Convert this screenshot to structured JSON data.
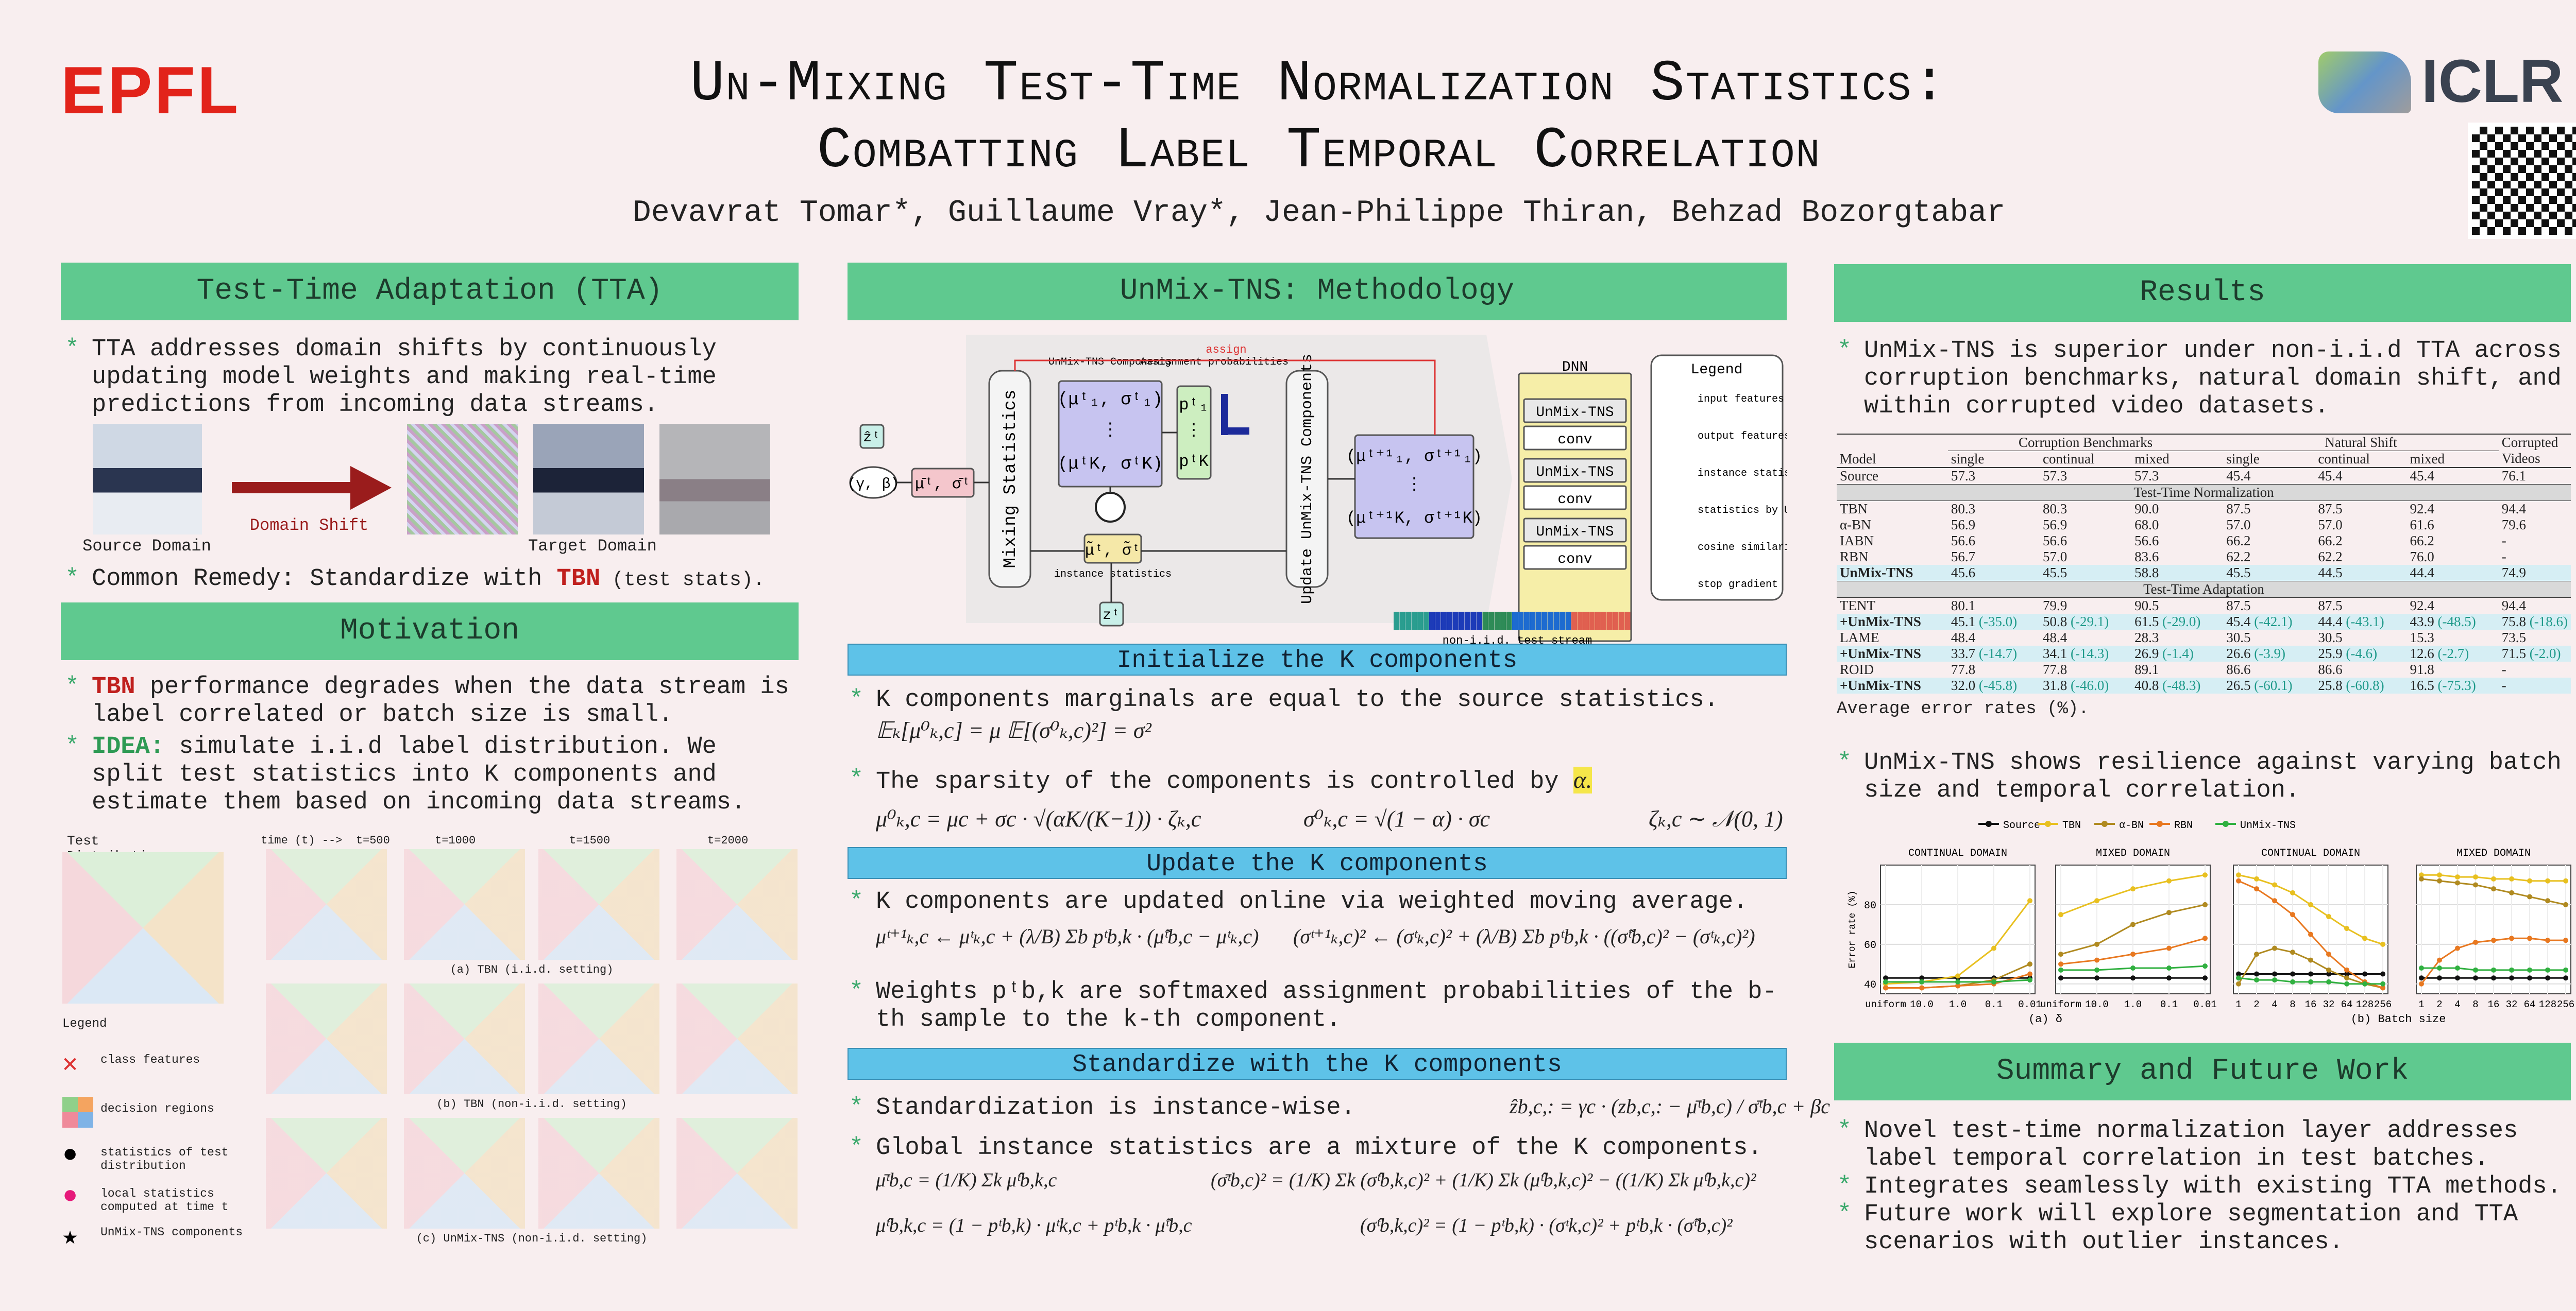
{
  "header": {
    "logo_left": "EPFL",
    "title_lines": [
      "Un-Mixing Test-Time Normalization Statistics:",
      "Combatting Label Temporal Correlation"
    ],
    "authors": "Devavrat Tomar*, Guillaume Vray*, Jean-Philippe Thiran, Behzad Bozorgtabar",
    "logo_right": "ICLR"
  },
  "tta": {
    "heading": "Test-Time Adaptation (TTA)",
    "bullet": "TTA addresses domain shifts by continuously updating model weights and making real-time predictions from incoming data streams.",
    "source_label": "Source Domain",
    "arrow_label": "Domain Shift",
    "target_label": "Target Domain",
    "remedy": {
      "pre": "Common Remedy: Standardize with ",
      "key": "TBN",
      "post": " (test stats)."
    }
  },
  "motivation": {
    "heading": "Motivation",
    "bullets": [
      {
        "key": "TBN",
        "text": " performance degrades when the data stream is label correlated or batch size is small."
      },
      {
        "key": "IDEA:",
        "text": " simulate i.i.d label distribution. We split test statistics into K components and estimate them based on incoming data streams."
      }
    ],
    "figure": {
      "test_distribution": "Test Distribution",
      "times": [
        "time (t) -->  t=500",
        "t=1000",
        "t=1500",
        "t=2000"
      ],
      "captions": [
        "(a) TBN (i.i.d. setting)",
        "(b) TBN (non-i.i.d. setting)",
        "(c) UnMix-TNS (non-i.i.d. setting)"
      ],
      "legend_title": "Legend",
      "legend": [
        "class features",
        "decision regions",
        "statistics of test distribution",
        "local statistics computed at time t",
        "UnMix-TNS components"
      ]
    }
  },
  "method": {
    "heading": "UnMix-TNS: Methodology",
    "diagram": {
      "assign": "assign",
      "components": "UnMix-TNS Components",
      "assignment": "Assignment probabilities",
      "mixing": "Mixing Statistics",
      "update": "Update UnMix-TNS Components",
      "instance": "instance statistics",
      "stream": "non-i.i.d. test stream",
      "dnn": "DNN",
      "blocks": [
        "UnMix-TNS",
        "conv",
        "UnMix-TNS",
        "conv",
        "UnMix-TNS",
        "conv"
      ],
      "legend_title": "Legend",
      "legend": [
        "input features",
        "output features",
        "instance statistics",
        "statistics by UnMix-TNS",
        "cosine similarity",
        "stop gradient"
      ],
      "symbols": {
        "zhat": "ẑᵗ",
        "z": "zᵗ",
        "gb": "(γ, β)",
        "mixed": "μ̄ᵗ, σ̄ᵗ",
        "inst": "μ̃ᵗ, σ̃ᵗ",
        "comp": [
          "(μᵗ₁, σᵗ₁)",
          "⋮",
          "(μᵗK, σᵗK)"
        ],
        "prob": [
          "pᵗ₁",
          "⋮",
          "pᵗK"
        ],
        "next": [
          "(μᵗ⁺¹₁, σᵗ⁺¹₁)",
          "⋮",
          "(μᵗ⁺¹K, σᵗ⁺¹K)"
        ]
      }
    },
    "init": {
      "heading": "Initialize the K components",
      "b1": "K components marginals are equal to the source statistics.",
      "eq1": "𝔼ₖ[μ⁰ₖ,c] = μ     𝔼[(σ⁰ₖ,c)²] = σ²",
      "b2": {
        "pre": "The sparsity of the components is controlled by ",
        "key": "α."
      },
      "eq2": [
        "μ⁰ₖ,c = μc + σc · √(αK/(K−1)) · ζₖ,c",
        "σ⁰ₖ,c = √(1 − α) · σc",
        "ζₖ,c ∼ 𝒩(0, 1)"
      ]
    },
    "update": {
      "heading": "Update the K components",
      "b1": "K components are updated online via weighted moving average.",
      "eq": [
        "μᵗ⁺¹ₖ,c ← μᵗₖ,c + (λ/B) Σb pᵗb,k · (μ̃ᵗb,c − μᵗₖ,c)",
        "(σᵗ⁺¹ₖ,c)² ← (σᵗₖ,c)² + (λ/B) Σb pᵗb,k · ((σ̃ᵗb,c)² − (σᵗₖ,c)²)"
      ],
      "b2": "Weights pᵗb,k are softmaxed assignment probabilities of the b-th sample to the k-th component."
    },
    "standardize": {
      "heading": "Standardize with the K components",
      "b1": "Standardization is instance-wise.",
      "eq0": "ẑb,c,: = γc · (zb,c,: − μ̄ᵗb,c) / σ̄ᵗb,c + βc",
      "b2": "Global instance statistics are a mixture of the K components.",
      "eq": [
        "μ̄ᵗb,c = (1/K) Σk μ̂ᵗb,k,c",
        "(σ̄ᵗb,c)² = (1/K) Σk (σ̂ᵗb,k,c)² + (1/K) Σk (μ̂ᵗb,k,c)² − ((1/K) Σk μ̂ᵗb,k,c)²",
        "μ̂ᵗb,k,c = (1 − pᵗb,k) · μᵗk,c + pᵗb,k · μ̃ᵗb,c",
        "(σ̂ᵗb,k,c)² = (1 − pᵗb,k) · (σᵗk,c)² + pᵗb,k · (σ̃ᵗb,c)²"
      ]
    }
  },
  "results": {
    "heading": "Results",
    "b1": "UnMix-TNS is superior under non-i.i.d TTA across corruption benchmarks, natural domain shift, and within corrupted video datasets.",
    "table": {
      "groups": [
        "Corruption Benchmarks",
        "Natural Shift",
        "Corrupted Videos"
      ],
      "columns": [
        "Model",
        "single",
        "continual",
        "mixed",
        "single",
        "continual",
        "mixed"
      ],
      "rows": [
        {
          "cells": [
            "Source",
            "57.3",
            "57.3",
            "57.3",
            "45.4",
            "45.4",
            "45.4",
            "76.1"
          ]
        },
        {
          "section": "Test-Time Normalization"
        },
        {
          "cells": [
            "TBN",
            "80.3",
            "80.3",
            "90.0",
            "87.5",
            "87.5",
            "92.4",
            "94.4"
          ]
        },
        {
          "cells": [
            "α-BN",
            "56.9",
            "56.9",
            "68.0",
            "57.0",
            "57.0",
            "61.6",
            "79.6"
          ]
        },
        {
          "cells": [
            "IABN",
            "56.6",
            "56.6",
            "56.6",
            "66.2",
            "66.2",
            "66.2",
            "-"
          ]
        },
        {
          "cells": [
            "RBN",
            "56.7",
            "57.0",
            "83.6",
            "62.2",
            "62.2",
            "76.0",
            "-"
          ]
        },
        {
          "cells": [
            "UnMix-TNS",
            "45.6",
            "45.5",
            "58.8",
            "45.5",
            "44.5",
            "44.4",
            "74.9"
          ],
          "ours": true
        },
        {
          "section": "Test-Time Adaptation"
        },
        {
          "cells": [
            "TENT",
            "80.1",
            "79.9",
            "90.5",
            "87.5",
            "87.5",
            "92.4",
            "94.4"
          ]
        },
        {
          "cells": [
            "+UnMix-TNS",
            {
              "v": "45.1",
              "d": "(-35.0)"
            },
            {
              "v": "50.8",
              "d": "(-29.1)"
            },
            {
              "v": "61.5",
              "d": "(-29.0)"
            },
            {
              "v": "45.4",
              "d": "(-42.1)"
            },
            {
              "v": "44.4",
              "d": "(-43.1)"
            },
            {
              "v": "43.9",
              "d": "(-48.5)"
            },
            {
              "v": "75.8",
              "d": "(-18.6)"
            }
          ],
          "ours": true
        },
        {
          "cells": [
            "LAME",
            "48.4",
            "48.4",
            "28.3",
            "30.5",
            "30.5",
            "15.3",
            "73.5"
          ]
        },
        {
          "cells": [
            "+UnMix-TNS",
            {
              "v": "33.7",
              "d": "(-14.7)"
            },
            {
              "v": "34.1",
              "d": "(-14.3)"
            },
            {
              "v": "26.9",
              "d": "(-1.4)"
            },
            {
              "v": "26.6",
              "d": "(-3.9)"
            },
            {
              "v": "25.9",
              "d": "(-4.6)"
            },
            {
              "v": "12.6",
              "d": "(-2.7)"
            },
            {
              "v": "71.5",
              "d": "(-2.0)"
            }
          ],
          "ours": true
        },
        {
          "cells": [
            "ROID",
            "77.8",
            "77.8",
            "89.1",
            "86.6",
            "86.6",
            "91.8",
            "-"
          ]
        },
        {
          "cells": [
            "+UnMix-TNS",
            {
              "v": "32.0",
              "d": "(-45.8)"
            },
            {
              "v": "31.8",
              "d": "(-46.0)"
            },
            {
              "v": "40.8",
              "d": "(-48.3)"
            },
            {
              "v": "26.5",
              "d": "(-60.1)"
            },
            {
              "v": "25.8",
              "d": "(-60.8)"
            },
            {
              "v": "16.5",
              "d": "(-75.3)"
            },
            "-"
          ],
          "ours": true
        }
      ]
    },
    "caption": "Average error rates (%).",
    "b2": "UnMix-TNS shows resilience against varying batch size and temporal correlation."
  },
  "chart_data": [
    {
      "type": "line",
      "title": "CONTINUAL DOMAIN",
      "ylabel": "Error rate (%)",
      "categories": [
        "uniform",
        "10.0",
        "1.0",
        "0.1",
        "0.01"
      ],
      "ylim": [
        35,
        100
      ],
      "yticks": [
        40,
        60,
        80
      ],
      "grid": true,
      "xlabel": "(a) δ",
      "series": [
        {
          "name": "Source",
          "color": "#111111",
          "values": [
            43,
            43,
            43,
            43,
            43
          ]
        },
        {
          "name": "TBN",
          "color": "#e8c020",
          "values": [
            40,
            41,
            44,
            58,
            82
          ]
        },
        {
          "name": "α-BN",
          "color": "#b08a20",
          "values": [
            38,
            38,
            39,
            42,
            50
          ]
        },
        {
          "name": "RBN",
          "color": "#e87820",
          "values": [
            38,
            38,
            39,
            40,
            45
          ]
        },
        {
          "name": "UnMix-TNS",
          "color": "#30b040",
          "values": [
            41,
            41,
            41,
            41,
            42
          ]
        }
      ]
    },
    {
      "type": "line",
      "title": "MIXED DOMAIN",
      "categories": [
        "uniform",
        "10.0",
        "1.0",
        "0.1",
        "0.01"
      ],
      "ylim": [
        35,
        100
      ],
      "yticks": [
        40,
        60,
        80
      ],
      "grid": true,
      "series": [
        {
          "name": "Source",
          "color": "#111111",
          "values": [
            43,
            43,
            43,
            43,
            43
          ]
        },
        {
          "name": "TBN",
          "color": "#e8c020",
          "values": [
            75,
            82,
            88,
            92,
            95
          ]
        },
        {
          "name": "α-BN",
          "color": "#b08a20",
          "values": [
            55,
            60,
            70,
            76,
            80
          ]
        },
        {
          "name": "RBN",
          "color": "#e87820",
          "values": [
            50,
            52,
            55,
            58,
            63
          ]
        },
        {
          "name": "UnMix-TNS",
          "color": "#30b040",
          "values": [
            47,
            47,
            48,
            48,
            49
          ]
        }
      ]
    },
    {
      "type": "line",
      "title": "CONTINUAL DOMAIN",
      "categories": [
        "1",
        "2",
        "4",
        "8",
        "16",
        "32",
        "64",
        "128",
        "256"
      ],
      "ylim": [
        35,
        100
      ],
      "yticks": [
        40,
        60,
        80
      ],
      "grid": true,
      "xlabel": "(b) Batch size",
      "series": [
        {
          "name": "Source",
          "color": "#111111",
          "values": [
            45,
            45,
            45,
            45,
            45,
            45,
            45,
            45,
            45
          ]
        },
        {
          "name": "TBN",
          "color": "#e8c020",
          "values": [
            95,
            93,
            90,
            86,
            80,
            74,
            68,
            63,
            60
          ]
        },
        {
          "name": "α-BN",
          "color": "#b08a20",
          "values": [
            40,
            55,
            58,
            56,
            52,
            47,
            43,
            40,
            38
          ]
        },
        {
          "name": "RBN",
          "color": "#e87820",
          "values": [
            92,
            88,
            82,
            75,
            65,
            55,
            47,
            41,
            38
          ]
        },
        {
          "name": "UnMix-TNS",
          "color": "#30b040",
          "values": [
            43,
            42,
            42,
            41,
            41,
            41,
            40,
            40,
            40
          ]
        }
      ]
    },
    {
      "type": "line",
      "title": "MIXED DOMAIN",
      "categories": [
        "1",
        "2",
        "4",
        "8",
        "16",
        "32",
        "64",
        "128",
        "256"
      ],
      "ylim": [
        35,
        100
      ],
      "yticks": [
        40,
        60,
        80
      ],
      "grid": true,
      "series": [
        {
          "name": "Source",
          "color": "#111111",
          "values": [
            43,
            43,
            43,
            43,
            43,
            43,
            43,
            43,
            43
          ]
        },
        {
          "name": "TBN",
          "color": "#e8c020",
          "values": [
            95,
            95,
            94,
            94,
            93,
            93,
            92,
            92,
            92
          ]
        },
        {
          "name": "α-BN",
          "color": "#b08a20",
          "values": [
            93,
            92,
            91,
            90,
            88,
            86,
            84,
            82,
            80
          ]
        },
        {
          "name": "RBN",
          "color": "#e87820",
          "values": [
            40,
            52,
            58,
            61,
            62,
            63,
            63,
            62,
            62
          ]
        },
        {
          "name": "UnMix-TNS",
          "color": "#30b040",
          "values": [
            48,
            48,
            48,
            47,
            47,
            47,
            47,
            47,
            47
          ]
        }
      ]
    }
  ],
  "summary": {
    "heading": "Summary and Future Work",
    "bullets": [
      "Novel test-time normalization layer addresses label temporal correlation in test batches.",
      "Integrates seamlessly with existing TTA methods.",
      "Future work will explore segmentation and TTA scenarios with outlier instances."
    ]
  }
}
